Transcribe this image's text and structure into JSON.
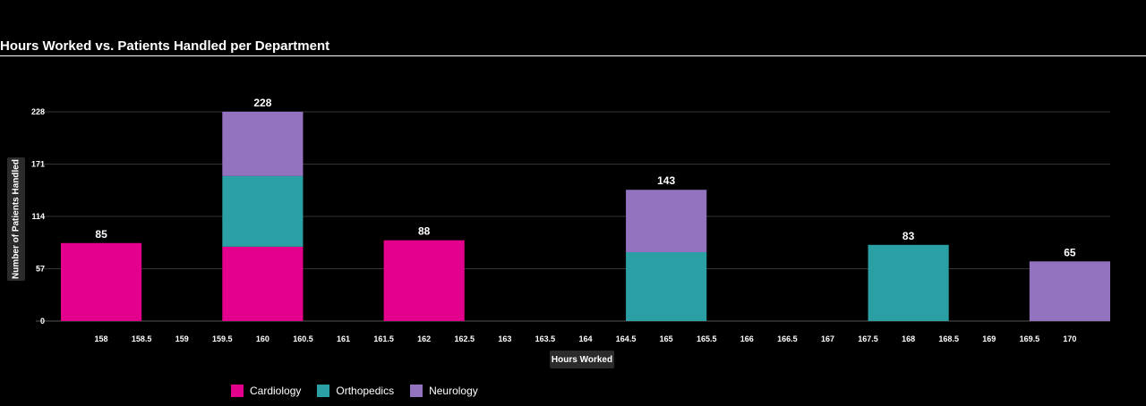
{
  "chart_data": {
    "type": "bar",
    "stacked": true,
    "title": "Hours Worked vs. Patients Handled per Department",
    "xlabel": "Hours Worked",
    "ylabel": "Number of Patients Handled",
    "xlim": [
      157.5,
      170.5
    ],
    "ylim": [
      0,
      228
    ],
    "bar_width": 1,
    "x_ticks": [
      "158",
      "158.5",
      "159",
      "159.5",
      "160",
      "160.5",
      "161",
      "161.5",
      "162",
      "162.5",
      "163",
      "163.5",
      "164",
      "164.5",
      "165",
      "165.5",
      "166",
      "166.5",
      "167",
      "167.5",
      "168",
      "168.5",
      "169",
      "169.5",
      "170"
    ],
    "y_ticks": [
      0,
      57,
      114,
      171,
      228
    ],
    "grid": true,
    "legend_position": "bottom-left",
    "x": [
      158,
      160,
      162,
      165,
      168,
      170
    ],
    "series": [
      {
        "name": "Cardiology",
        "color": "#e3008c",
        "values": [
          85,
          81,
          88,
          0,
          0,
          0
        ]
      },
      {
        "name": "Orthopedics",
        "color": "#2aa0a4",
        "values": [
          0,
          77,
          0,
          75,
          83,
          0
        ]
      },
      {
        "name": "Neurology",
        "color": "#9373c0",
        "values": [
          0,
          70,
          0,
          68,
          0,
          65
        ]
      }
    ],
    "totals": [
      85,
      228,
      88,
      143,
      83,
      65
    ]
  }
}
